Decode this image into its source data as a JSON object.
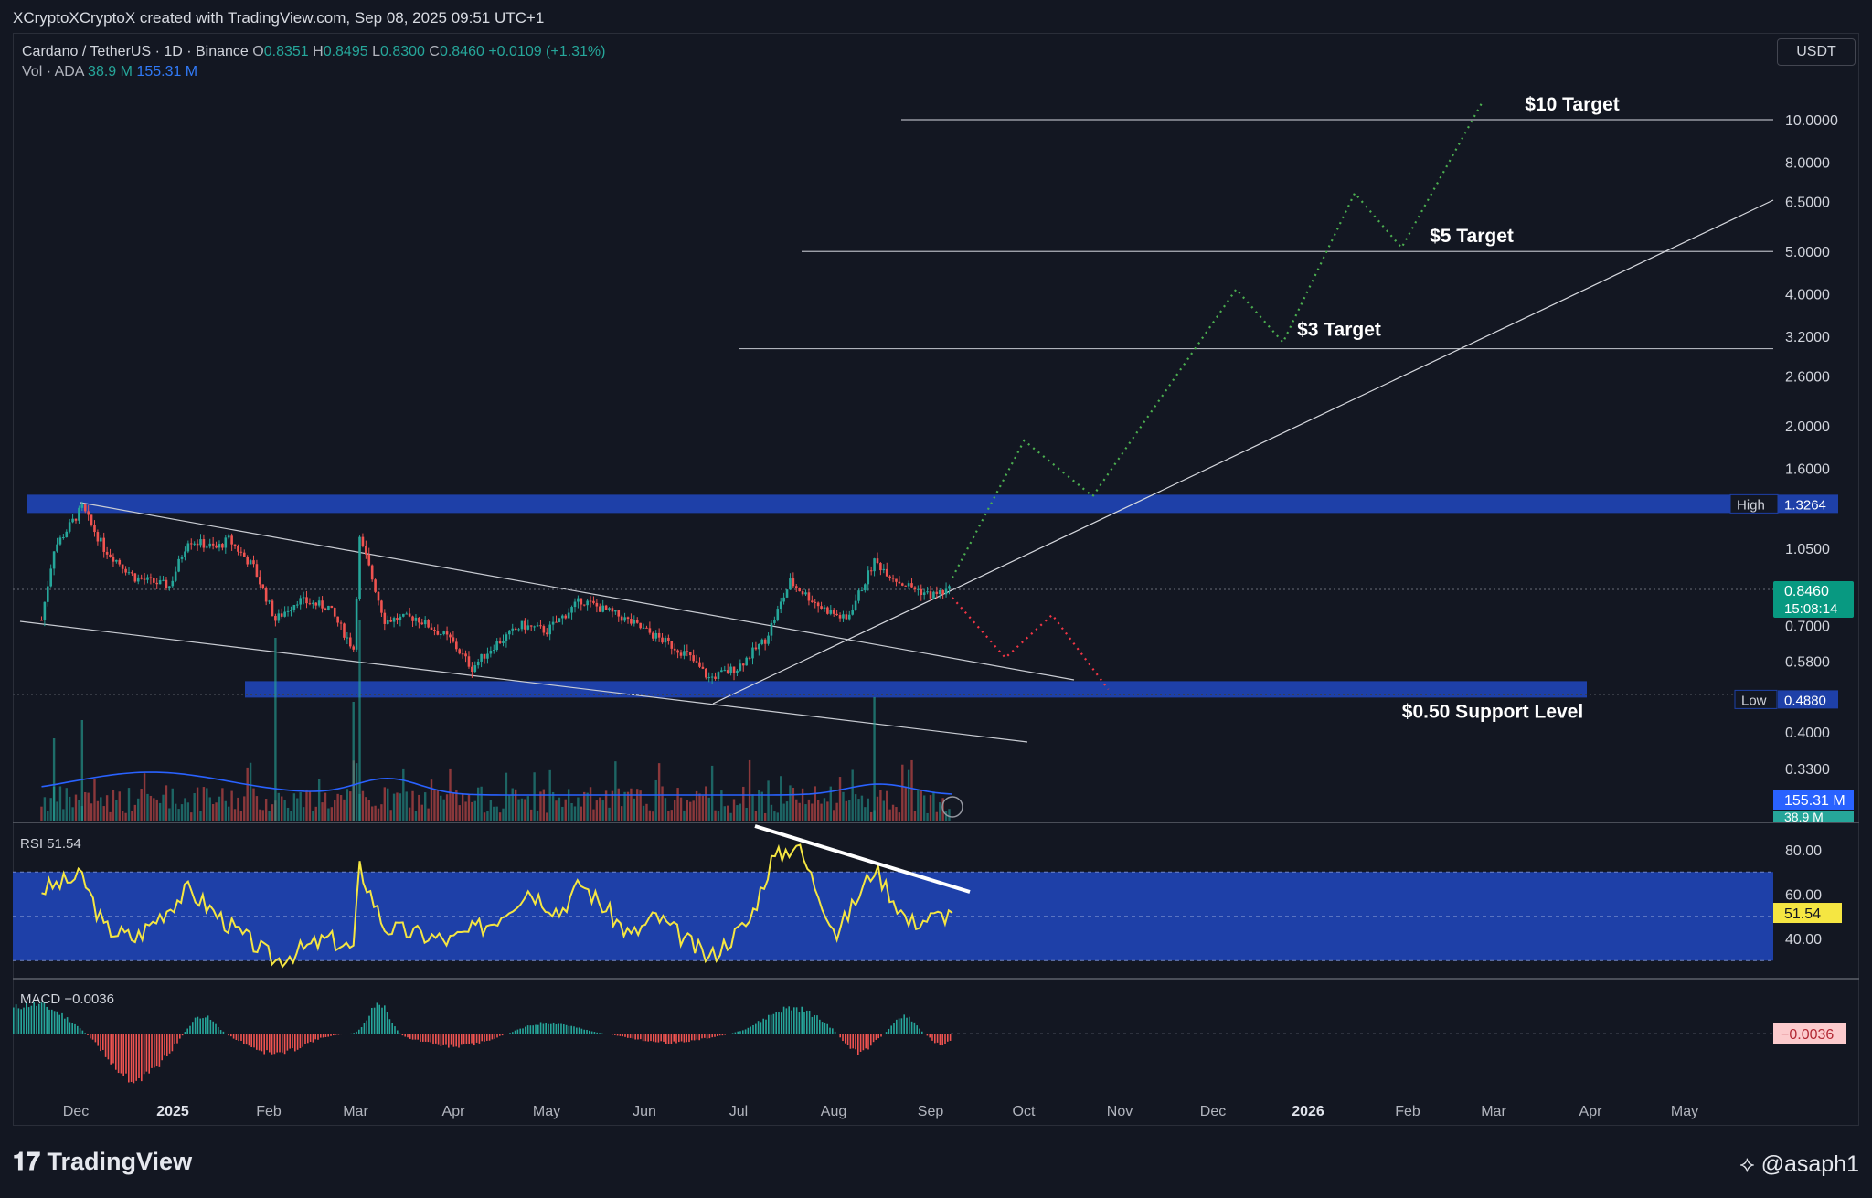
{
  "header": {
    "attribution": "XCryptoXCryptoX created with TradingView.com, Sep 08, 2025 09:51 UTC+1"
  },
  "legend": {
    "symbol": "Cardano / TetherUS · 1D · Binance",
    "o_label": "O",
    "o_value": "0.8351",
    "h_label": "H",
    "h_value": "0.8495",
    "l_label": "L",
    "l_value": "0.8300",
    "c_label": "C",
    "c_value": "0.8460",
    "change": "+0.0109 (+1.31%)",
    "vol_label": "Vol · ADA",
    "vol_v1": "38.9 M",
    "vol_v2": "155.31 M"
  },
  "currency_button": "USDT",
  "footer": {
    "brand": "TradingView",
    "user": "@asaph1"
  },
  "colors": {
    "bg": "#131722",
    "up": "#26a69a",
    "down": "#ef5350",
    "zone": "#1e40a8",
    "rsi": "#f5e642",
    "ma": "#2962ff"
  },
  "chart_data": [
    {
      "type": "candlestick",
      "title": "Cardano / TetherUS · 1D · Binance",
      "y_scale": "log",
      "y_ticks": [
        "10.0000",
        "8.0000",
        "6.5000",
        "5.0000",
        "4.0000",
        "3.2000",
        "2.6000",
        "2.0000",
        "1.6000",
        "1.0500",
        "0.7000",
        "0.5800",
        "0.4000",
        "0.3300"
      ],
      "x_ticks": [
        "Dec",
        "2025",
        "Feb",
        "Mar",
        "Apr",
        "May",
        "Jun",
        "Jul",
        "Aug",
        "Sep",
        "Oct",
        "Nov",
        "Dec",
        "2026",
        "Feb",
        "Mar",
        "Apr",
        "May"
      ],
      "close_path": [
        [
          "2024-11-20",
          0.72
        ],
        [
          "2024-11-24",
          1.05
        ],
        [
          "2024-12-03",
          1.3
        ],
        [
          "2024-12-10",
          1.05
        ],
        [
          "2024-12-20",
          0.9
        ],
        [
          "2024-12-31",
          0.86
        ],
        [
          "2025-01-06",
          1.1
        ],
        [
          "2025-01-15",
          1.05
        ],
        [
          "2025-01-19",
          1.1
        ],
        [
          "2025-01-27",
          0.95
        ],
        [
          "2025-02-03",
          0.72
        ],
        [
          "2025-02-10",
          0.8
        ],
        [
          "2025-02-20",
          0.77
        ],
        [
          "2025-02-28",
          0.62
        ],
        [
          "2025-03-02",
          1.1
        ],
        [
          "2025-03-04",
          1.0
        ],
        [
          "2025-03-10",
          0.72
        ],
        [
          "2025-03-20",
          0.73
        ],
        [
          "2025-03-31",
          0.65
        ],
        [
          "2025-04-07",
          0.56
        ],
        [
          "2025-04-14",
          0.63
        ],
        [
          "2025-04-23",
          0.7
        ],
        [
          "2025-05-01",
          0.68
        ],
        [
          "2025-05-12",
          0.8
        ],
        [
          "2025-05-25",
          0.73
        ],
        [
          "2025-06-05",
          0.66
        ],
        [
          "2025-06-15",
          0.6
        ],
        [
          "2025-06-22",
          0.53
        ],
        [
          "2025-07-01",
          0.56
        ],
        [
          "2025-07-10",
          0.65
        ],
        [
          "2025-07-18",
          0.88
        ],
        [
          "2025-07-28",
          0.77
        ],
        [
          "2025-08-05",
          0.72
        ],
        [
          "2025-08-14",
          0.98
        ],
        [
          "2025-08-22",
          0.88
        ],
        [
          "2025-09-01",
          0.82
        ],
        [
          "2025-09-08",
          0.846
        ]
      ],
      "current_price": "0.8460",
      "countdown": "15:08:14",
      "high_label": "High",
      "high_value": "1.3264",
      "low_label": "Low",
      "low_value": "0.4880",
      "annotations": [
        "$10 Target",
        "$5 Target",
        "$3 Target",
        "$0.50 Support Level"
      ],
      "target_levels": [
        10,
        5,
        3
      ],
      "bullish_projection": [
        [
          "2025-09-08",
          0.9
        ],
        [
          "2025-10-01",
          1.85
        ],
        [
          "2025-10-23",
          1.38
        ],
        [
          "2025-12-08",
          4.1
        ],
        [
          "2025-12-23",
          3.1
        ],
        [
          "2026-01-15",
          6.8
        ],
        [
          "2026-01-30",
          5.1
        ],
        [
          "2026-02-25",
          11.0
        ]
      ],
      "bearish_projection": [
        [
          "2025-09-08",
          0.81
        ],
        [
          "2025-09-25",
          0.59
        ],
        [
          "2025-10-10",
          0.74
        ],
        [
          "2025-10-28",
          0.5
        ]
      ],
      "volume_labels": [
        "155.31 M",
        "38.9 M"
      ]
    },
    {
      "type": "line",
      "title": "RSI",
      "value_label": "51.54",
      "y_ticks": [
        "80.00",
        "60.00",
        "40.00"
      ],
      "band": [
        30,
        70
      ],
      "last_value": "51.54",
      "path": [
        [
          "2024-11-20",
          62
        ],
        [
          "2024-12-03",
          68
        ],
        [
          "2024-12-10",
          45
        ],
        [
          "2024-12-20",
          40
        ],
        [
          "2025-01-06",
          62
        ],
        [
          "2025-01-20",
          45
        ],
        [
          "2025-02-03",
          30
        ],
        [
          "2025-02-20",
          40
        ],
        [
          "2025-02-28",
          35
        ],
        [
          "2025-03-02",
          72
        ],
        [
          "2025-03-10",
          45
        ],
        [
          "2025-03-31",
          39
        ],
        [
          "2025-04-14",
          48
        ],
        [
          "2025-04-25",
          62
        ],
        [
          "2025-05-05",
          52
        ],
        [
          "2025-05-12",
          65
        ],
        [
          "2025-05-28",
          41
        ],
        [
          "2025-06-05",
          50
        ],
        [
          "2025-06-22",
          31
        ],
        [
          "2025-07-05",
          48
        ],
        [
          "2025-07-12",
          75
        ],
        [
          "2025-07-20",
          83
        ],
        [
          "2025-08-02",
          42
        ],
        [
          "2025-08-14",
          72
        ],
        [
          "2025-08-25",
          47
        ],
        [
          "2025-09-08",
          51.54
        ]
      ]
    },
    {
      "type": "bar",
      "title": "MACD",
      "value_label": "−0.0036",
      "last_value": "−0.0036"
    }
  ]
}
